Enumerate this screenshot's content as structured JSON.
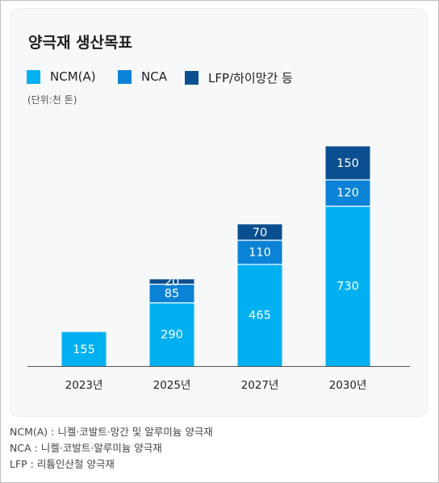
{
  "chart_data": {
    "type": "bar",
    "stacked": true,
    "title": "양극재 생산목표",
    "unit_note": "(단위:천 톤)",
    "categories": [
      "2023년",
      "2025년",
      "2027년",
      "2030년"
    ],
    "series": [
      {
        "name": "NCM(A)",
        "values": [
          155,
          290,
          465,
          730
        ],
        "color": "#00b0f0"
      },
      {
        "name": "NCA",
        "values": [
          0,
          85,
          110,
          120
        ],
        "color": "#0a83d6"
      },
      {
        "name": "LFP/하이망간 등",
        "values": [
          0,
          20,
          70,
          150
        ],
        "color": "#0a4f8f"
      }
    ],
    "ylim": [
      0,
      1000
    ],
    "grid": false,
    "legend_position": "top-left"
  },
  "footnotes": [
    "NCM(A) : 니켈·코발트·망간 및 알루미늄 양극재",
    "NCA : 니켈·코발트·알루미늄 양극재",
    "LFP : 리튬인산철 양극재"
  ]
}
